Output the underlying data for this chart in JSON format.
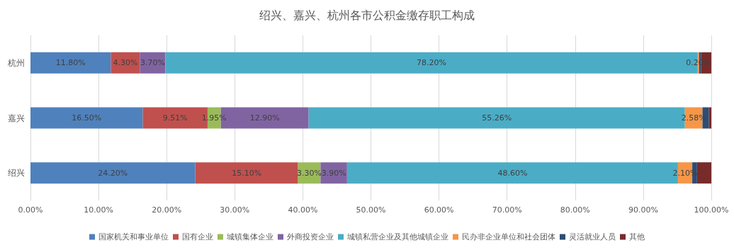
{
  "chart_data": {
    "type": "bar",
    "title": "绍兴、嘉兴、杭州各市公积金缴存职工构成",
    "orientation": "horizontal",
    "stacked": true,
    "categories": [
      "杭州",
      "嘉兴",
      "绍兴"
    ],
    "series": [
      {
        "name": "国家机关和事业单位",
        "color": "#4f81bd",
        "values": [
          11.8,
          16.5,
          24.2
        ],
        "value_labels": [
          "11.80%",
          "16.50%",
          "24.20%"
        ]
      },
      {
        "name": "国有企业",
        "color": "#c0504d",
        "values": [
          4.3,
          9.51,
          15.1
        ],
        "value_labels": [
          "4.30%",
          "9.51%",
          "15.10%"
        ]
      },
      {
        "name": "城镇集体企业",
        "color": "#9bbb59",
        "values": [
          null,
          1.95,
          3.3
        ],
        "value_labels": [
          null,
          "1.95%",
          "3.30%"
        ]
      },
      {
        "name": "外商投资企业",
        "color": "#8064a2",
        "values": [
          3.7,
          12.9,
          3.9
        ],
        "value_labels": [
          "3.70%",
          "12.90%",
          "3.90%"
        ]
      },
      {
        "name": "城镇私营企业及其他城镇企业",
        "color": "#4bacc6",
        "values": [
          78.2,
          55.26,
          48.6
        ],
        "value_labels": [
          "78.20%",
          "55.26%",
          "48.60%"
        ]
      },
      {
        "name": "民办非企业单位和社会团体",
        "color": "#f79646",
        "values": [
          0.2,
          2.58,
          2.1
        ],
        "value_labels": [
          "0.20%",
          "2.58%",
          "2.10%"
        ]
      },
      {
        "name": "灵活就业人员",
        "color": "#2c4d75",
        "values": [
          0.3,
          0.95,
          0.7
        ],
        "value_labels": [
          null,
          null,
          null
        ]
      },
      {
        "name": "其他",
        "color": "#772c2a",
        "values": [
          1.5,
          0.35,
          2.1
        ],
        "value_labels": [
          null,
          null,
          null
        ]
      }
    ],
    "xlim": [
      0,
      100
    ],
    "xticks": [
      {
        "value": 0,
        "label": "0.00%"
      },
      {
        "value": 10,
        "label": "10.00%"
      },
      {
        "value": 20,
        "label": "20.00%"
      },
      {
        "value": 30,
        "label": "30.00%"
      },
      {
        "value": 40,
        "label": "40.00%"
      },
      {
        "value": 50,
        "label": "50.00%"
      },
      {
        "value": 60,
        "label": "60.00%"
      },
      {
        "value": 70,
        "label": "70.00%"
      },
      {
        "value": 80,
        "label": "80.00%"
      },
      {
        "value": 90,
        "label": "90.00%"
      },
      {
        "value": 100,
        "label": "100.00%"
      }
    ],
    "grid": "x",
    "legend": "bottom"
  }
}
